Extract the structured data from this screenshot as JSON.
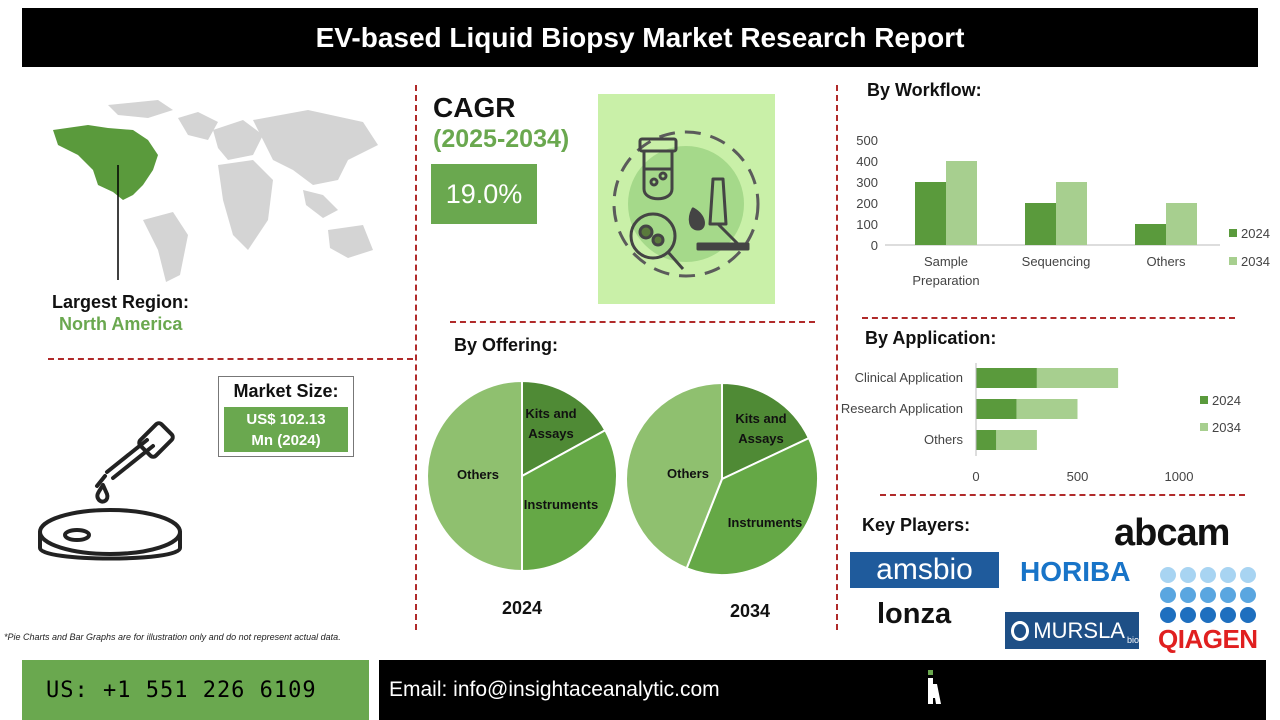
{
  "header": {
    "title": "EV-based Liquid Biopsy Market Research Report"
  },
  "region": {
    "label": "Largest Region:",
    "value": "North America"
  },
  "market_size": {
    "label": "Market Size:",
    "value_line1": "US$ 102.13",
    "value_line2": "Mn (2024)"
  },
  "cagr": {
    "label": "CAGR",
    "period": "(2025-2034)",
    "value": "19.0%"
  },
  "offering": {
    "title": "By Offering:",
    "year1": "2024",
    "year2": "2034"
  },
  "workflow": {
    "title": "By Workflow:"
  },
  "application": {
    "title": "By Application:"
  },
  "key_players": {
    "title": "Key Players:",
    "logos": [
      "abcam",
      "amsbio",
      "HORIBA",
      "Lonza",
      "MURSLA",
      "bio",
      "QIAGEN"
    ]
  },
  "footnote": "*Pie Charts and Bar Graphs are for illustration only and do not represent actual data.",
  "footer": {
    "phone": "US: +1 551 226 6109",
    "email": "Email: info@insightaceanalytic.com"
  },
  "colors": {
    "dark_green": "#5a9a3c",
    "light_green": "#a7cf8f",
    "accent_green": "#6aa84f",
    "divider_red": "#b02a2a"
  },
  "chart_data": [
    {
      "type": "bar",
      "categories": [
        "Sample Preparation",
        "Sequencing",
        "Others"
      ],
      "series": [
        {
          "name": "2024",
          "values": [
            300,
            200,
            100
          ]
        },
        {
          "name": "2034",
          "values": [
            400,
            300,
            200
          ]
        }
      ],
      "ylim": [
        0,
        500
      ],
      "yticks": [
        "0",
        "100",
        "200",
        "300",
        "400",
        "500"
      ],
      "legend": "right"
    },
    {
      "type": "bar",
      "orientation": "horizontal-stacked",
      "categories": [
        "Clinical Application",
        "Research Application",
        "Others"
      ],
      "series": [
        {
          "name": "2024",
          "values": [
            300,
            200,
            100
          ]
        },
        {
          "name": "2034",
          "values": [
            400,
            300,
            200
          ]
        }
      ],
      "xlim": [
        0,
        1000
      ],
      "xticks": [
        "0",
        "500",
        "1000"
      ],
      "legend": "right"
    },
    {
      "type": "pie",
      "year": "2024",
      "slices": [
        {
          "label": "Kits and Assays",
          "value": 17
        },
        {
          "label": "Instruments",
          "value": 33
        },
        {
          "label": "Others",
          "value": 50
        }
      ]
    },
    {
      "type": "pie",
      "year": "2034",
      "slices": [
        {
          "label": "Kits and Assays",
          "value": 18
        },
        {
          "label": "Instruments",
          "value": 38
        },
        {
          "label": "Others",
          "value": 44
        }
      ]
    }
  ]
}
